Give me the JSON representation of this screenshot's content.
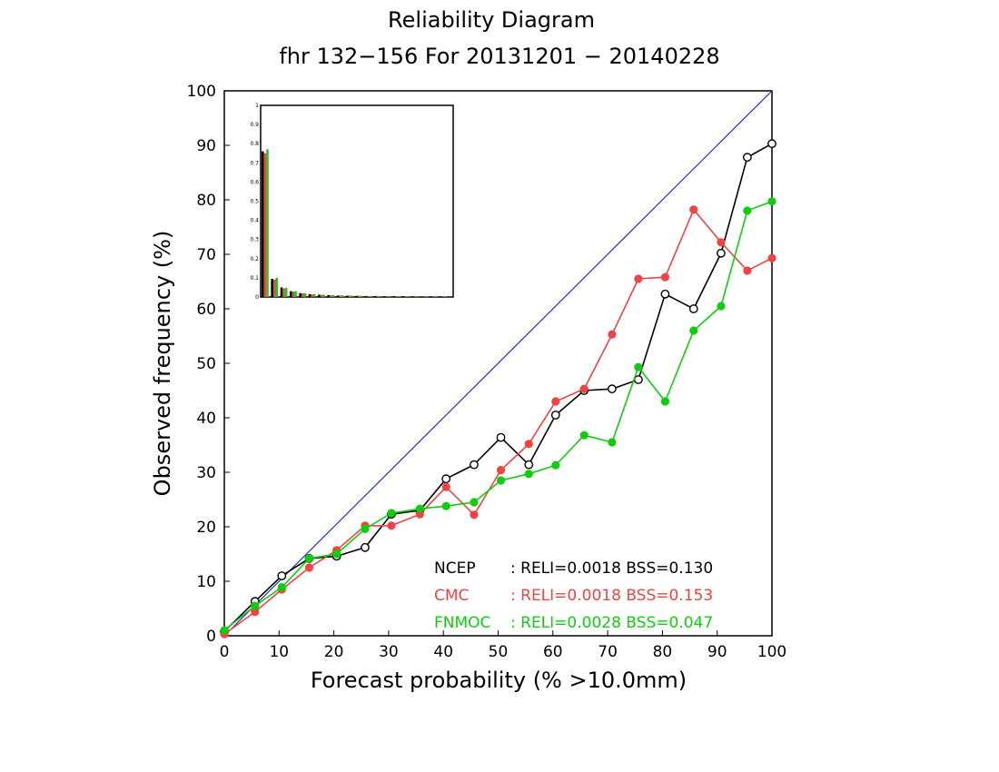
{
  "chart_data": {
    "type": "line",
    "title": "Reliability Diagram",
    "subtitle": "fhr 132−156 For 20131201 − 20140228",
    "xlabel": "Forecast probability (% >10.0mm)",
    "ylabel": "Observed frequency (%)",
    "xlim": [
      0,
      100
    ],
    "ylim": [
      0,
      100
    ],
    "x_ticks": [
      "0",
      "10",
      "20",
      "30",
      "40",
      "50",
      "60",
      "70",
      "80",
      "90",
      "100"
    ],
    "y_ticks": [
      "0",
      "10",
      "20",
      "30",
      "40",
      "50",
      "60",
      "70",
      "80",
      "90",
      "100"
    ],
    "diagonal_color": "#2233aa",
    "x": [
      0,
      5.6,
      10.5,
      15.5,
      20.5,
      25.7,
      30.5,
      35.7,
      40.5,
      45.6,
      50.5,
      55.6,
      60.5,
      65.7,
      70.8,
      75.6,
      80.5,
      85.7,
      90.7,
      95.5,
      100
    ],
    "series": [
      {
        "name": "NCEP",
        "color": "#000000",
        "marker": "open-circle",
        "values": [
          0.8,
          6.3,
          11.0,
          14.2,
          14.6,
          16.2,
          22.3,
          23.0,
          28.8,
          31.4,
          36.4,
          31.4,
          40.5,
          45.0,
          45.3,
          47.0,
          62.7,
          60.0,
          70.2,
          87.8,
          90.3
        ],
        "stats": ": RELI=0.0018  BSS=0.130"
      },
      {
        "name": "CMC",
        "color": "#ee4444",
        "marker": "filled-circle",
        "values": [
          0.3,
          4.4,
          8.5,
          12.5,
          15.7,
          20.2,
          20.2,
          22.3,
          27.3,
          22.2,
          30.4,
          35.2,
          43.0,
          45.3,
          55.3,
          65.5,
          65.8,
          78.2,
          72.2,
          67.0,
          69.3
        ],
        "stats": ": RELI=0.0018  BSS=0.153"
      },
      {
        "name": "FNMOC",
        "color": "#11cc11",
        "marker": "filled-circle",
        "values": [
          1.0,
          5.5,
          8.9,
          14.2,
          15.0,
          19.6,
          22.5,
          23.3,
          23.8,
          24.5,
          28.5,
          29.7,
          31.3,
          36.8,
          35.5,
          49.3,
          43.0,
          56.0,
          60.5,
          78.0,
          79.7
        ],
        "stats": ": RELI=0.0028  BSS=0.047"
      }
    ],
    "inset": {
      "type": "bar",
      "ylim": [
        0,
        1
      ],
      "y_ticks": [
        "0",
        "0.1",
        "0.2",
        "0.3",
        "0.4",
        "0.5",
        "0.6",
        "0.7",
        "0.8",
        "0.9",
        "1"
      ],
      "series": [
        {
          "name": "NCEP",
          "color": "#000000",
          "values": [
            0.76,
            0.095,
            0.05,
            0.03,
            0.02,
            0.015,
            0.012,
            0.01,
            0.008,
            0.007,
            0.006,
            0.005,
            0.005,
            0.004,
            0.004,
            0.004,
            0.003,
            0.003,
            0.003,
            0.003
          ]
        },
        {
          "name": "CMC",
          "color": "#ee4444",
          "values": [
            0.75,
            0.09,
            0.045,
            0.028,
            0.019,
            0.014,
            0.011,
            0.009,
            0.008,
            0.007,
            0.006,
            0.005,
            0.005,
            0.004,
            0.004,
            0.004,
            0.003,
            0.003,
            0.003,
            0.003
          ]
        },
        {
          "name": "FNMOC",
          "color": "#11cc11",
          "values": [
            0.77,
            0.1,
            0.048,
            0.03,
            0.02,
            0.015,
            0.012,
            0.01,
            0.008,
            0.007,
            0.006,
            0.005,
            0.005,
            0.004,
            0.004,
            0.004,
            0.003,
            0.003,
            0.003,
            0.003
          ]
        }
      ]
    }
  }
}
